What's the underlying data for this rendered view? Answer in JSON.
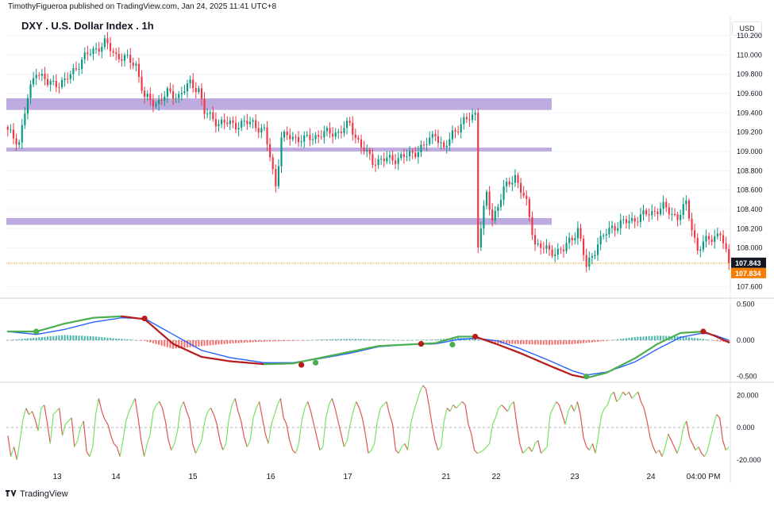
{
  "header": {
    "publisher": "TimothyFigueroa published on TradingView.com, Jan 24, 2025 11:41 UTC+8",
    "symbol_title": "DXY . U.S. Dollar Index . 1h",
    "currency": "USD",
    "footer_brand": "TradingView"
  },
  "colors": {
    "up": "#089981",
    "down": "#f23645",
    "zone": "#b39ddb",
    "price_line": "#f7a21b",
    "label_dark": "#131722",
    "label_orange": "#f57c00",
    "macd_fast_up": "#4caf50",
    "macd_fast_down": "#b71c1c",
    "macd_slow": "#2962ff",
    "osc_up": "#76e35f",
    "osc_down": "#e05555"
  },
  "chart_data": [
    {
      "type": "candlestick",
      "title": "DXY . U.S. Dollar Index . 1h",
      "ylabel": "USD",
      "ylim": [
        107.48,
        110.38
      ],
      "yticks": [
        "110.200",
        "110.000",
        "109.800",
        "109.600",
        "109.400",
        "109.200",
        "109.000",
        "108.800",
        "108.600",
        "108.400",
        "108.200",
        "108.000",
        "107.600"
      ],
      "xticks": [
        "13",
        "14",
        "15",
        "16",
        "17",
        "21",
        "22",
        "23",
        "24",
        "04:00 PM"
      ],
      "zones": [
        {
          "from": 109.43,
          "to": 109.55
        },
        {
          "from": 109.0,
          "to": 109.04
        },
        {
          "from": 108.24,
          "to": 108.31
        }
      ],
      "last_price_labels": [
        "107.843",
        "107.834"
      ],
      "anchors": [
        [
          0,
          109.2
        ],
        [
          4,
          109.1
        ],
        [
          7,
          109.55
        ],
        [
          10,
          109.85
        ],
        [
          14,
          109.7
        ],
        [
          20,
          109.72
        ],
        [
          26,
          109.95
        ],
        [
          30,
          110.05
        ],
        [
          34,
          110.12
        ],
        [
          38,
          110.0
        ],
        [
          42,
          109.95
        ],
        [
          45,
          109.9
        ],
        [
          48,
          109.55
        ],
        [
          52,
          109.5
        ],
        [
          56,
          109.6
        ],
        [
          60,
          109.58
        ],
        [
          64,
          109.7
        ],
        [
          67,
          109.65
        ],
        [
          69,
          109.4
        ],
        [
          74,
          109.3
        ],
        [
          80,
          109.28
        ],
        [
          86,
          109.3
        ],
        [
          90,
          109.2
        ],
        [
          92,
          108.95
        ],
        [
          94,
          108.65
        ],
        [
          96,
          109.15
        ],
        [
          100,
          109.15
        ],
        [
          104,
          109.12
        ],
        [
          110,
          109.18
        ],
        [
          116,
          109.2
        ],
        [
          120,
          109.28
        ],
        [
          124,
          109.05
        ],
        [
          128,
          108.9
        ],
        [
          134,
          108.92
        ],
        [
          140,
          108.95
        ],
        [
          146,
          109.05
        ],
        [
          150,
          109.2
        ],
        [
          153,
          109.0
        ],
        [
          156,
          109.2
        ],
        [
          160,
          109.3
        ],
        [
          164,
          109.4
        ],
        [
          165,
          108.05
        ],
        [
          168,
          108.55
        ],
        [
          170,
          108.3
        ],
        [
          174,
          108.6
        ],
        [
          178,
          108.75
        ],
        [
          182,
          108.45
        ],
        [
          185,
          108.05
        ],
        [
          190,
          107.96
        ],
        [
          195,
          107.98
        ],
        [
          200,
          108.2
        ],
        [
          203,
          107.8
        ],
        [
          207,
          108.05
        ],
        [
          212,
          108.22
        ],
        [
          218,
          108.28
        ],
        [
          224,
          108.35
        ],
        [
          230,
          108.42
        ],
        [
          235,
          108.32
        ],
        [
          238,
          108.45
        ],
        [
          242,
          107.98
        ],
        [
          246,
          108.1
        ],
        [
          250,
          108.15
        ],
        [
          253,
          107.83
        ]
      ]
    },
    {
      "type": "line",
      "name": "macd",
      "ylim": [
        -0.58,
        0.58
      ],
      "yticks": [
        "0.500",
        "0.000",
        "-0.500"
      ],
      "fast_anchors": [
        [
          0,
          0.12
        ],
        [
          10,
          0.12
        ],
        [
          20,
          0.23
        ],
        [
          30,
          0.31
        ],
        [
          40,
          0.33
        ],
        [
          48,
          0.29
        ],
        [
          58,
          -0.05
        ],
        [
          68,
          -0.23
        ],
        [
          78,
          -0.29
        ],
        [
          90,
          -0.33
        ],
        [
          100,
          -0.32
        ],
        [
          110,
          -0.24
        ],
        [
          120,
          -0.16
        ],
        [
          130,
          -0.08
        ],
        [
          140,
          -0.06
        ],
        [
          150,
          -0.04
        ],
        [
          158,
          0.05
        ],
        [
          164,
          0.05
        ],
        [
          172,
          -0.06
        ],
        [
          180,
          -0.18
        ],
        [
          190,
          -0.35
        ],
        [
          198,
          -0.48
        ],
        [
          203,
          -0.52
        ],
        [
          210,
          -0.45
        ],
        [
          220,
          -0.25
        ],
        [
          228,
          -0.05
        ],
        [
          236,
          0.1
        ],
        [
          244,
          0.12
        ],
        [
          248,
          0.06
        ],
        [
          253,
          -0.03
        ]
      ],
      "slow_anchors": [
        [
          0,
          0.12
        ],
        [
          10,
          0.08
        ],
        [
          20,
          0.15
        ],
        [
          30,
          0.25
        ],
        [
          40,
          0.31
        ],
        [
          48,
          0.3
        ],
        [
          58,
          0.08
        ],
        [
          68,
          -0.14
        ],
        [
          78,
          -0.24
        ],
        [
          90,
          -0.31
        ],
        [
          100,
          -0.31
        ],
        [
          110,
          -0.25
        ],
        [
          120,
          -0.18
        ],
        [
          130,
          -0.09
        ],
        [
          140,
          -0.06
        ],
        [
          150,
          -0.05
        ],
        [
          158,
          0.01
        ],
        [
          164,
          0.03
        ],
        [
          172,
          -0.01
        ],
        [
          180,
          -0.12
        ],
        [
          190,
          -0.28
        ],
        [
          198,
          -0.42
        ],
        [
          203,
          -0.48
        ],
        [
          210,
          -0.44
        ],
        [
          220,
          -0.3
        ],
        [
          228,
          -0.12
        ],
        [
          236,
          0.04
        ],
        [
          244,
          0.1
        ],
        [
          248,
          0.07
        ],
        [
          253,
          0.0
        ]
      ],
      "markers": [
        [
          10,
          0.12,
          "up"
        ],
        [
          48,
          0.3,
          "down"
        ],
        [
          103,
          -0.34,
          "down"
        ],
        [
          108,
          -0.31,
          "up"
        ],
        [
          145,
          -0.05,
          "down"
        ],
        [
          156,
          -0.06,
          "up"
        ],
        [
          164,
          0.05,
          "down"
        ],
        [
          203,
          -0.5,
          "up"
        ],
        [
          244,
          0.12,
          "down"
        ]
      ]
    },
    {
      "type": "line",
      "name": "oscillator",
      "ylim": [
        -26,
        28
      ],
      "yticks": [
        "20.000",
        "0.000",
        "-20.000"
      ],
      "values": [
        -5,
        -18,
        -12,
        -20,
        -8,
        5,
        12,
        8,
        10,
        5,
        -2,
        12,
        14,
        3,
        -10,
        8,
        10,
        12,
        -5,
        2,
        4,
        6,
        -12,
        -8,
        0,
        4,
        -15,
        -18,
        -12,
        8,
        18,
        10,
        5,
        2,
        -5,
        -10,
        -12,
        -18,
        -8,
        4,
        10,
        14,
        18,
        6,
        -8,
        -18,
        -10,
        -4,
        10,
        14,
        16,
        12,
        4,
        -8,
        -14,
        -10,
        -2,
        12,
        16,
        10,
        5,
        -10,
        -16,
        -12,
        -8,
        4,
        10,
        12,
        8,
        2,
        -8,
        -14,
        -10,
        6,
        14,
        18,
        10,
        4,
        -6,
        -12,
        -8,
        6,
        12,
        16,
        6,
        -4,
        -10,
        2,
        8,
        14,
        18,
        6,
        2,
        -8,
        -14,
        -16,
        -10,
        4,
        12,
        16,
        10,
        2,
        -6,
        -14,
        -12,
        6,
        14,
        18,
        12,
        4,
        -4,
        -12,
        -8,
        2,
        10,
        16,
        12,
        6,
        -4,
        -16,
        -14,
        -10,
        4,
        12,
        14,
        16,
        8,
        2,
        -14,
        -16,
        -12,
        -10,
        -14,
        2,
        10,
        16,
        22,
        26,
        24,
        14,
        2,
        -8,
        -14,
        -12,
        4,
        12,
        10,
        14,
        12,
        14,
        16,
        14,
        2,
        -4,
        -14,
        -16,
        -15,
        -14,
        -12,
        -10,
        2,
        6,
        12,
        14,
        12,
        10,
        14,
        16,
        2,
        -10,
        -16,
        -14,
        -12,
        -15,
        -10,
        -8,
        -16,
        -14,
        -12,
        8,
        12,
        16,
        14,
        8,
        2,
        10,
        14,
        10,
        16,
        8,
        -6,
        -12,
        -14,
        -10,
        -16,
        -4,
        8,
        12,
        14,
        20,
        22,
        16,
        18,
        22,
        20,
        22,
        18,
        20,
        22,
        16,
        12,
        4,
        -6,
        -12,
        -16,
        -14,
        -18,
        -12,
        -4,
        -8,
        -12,
        -16,
        -10,
        0,
        4,
        -6,
        -10,
        -14,
        -12,
        -16,
        -18,
        -14,
        -6,
        2,
        8,
        6,
        -8,
        -14,
        -12
      ]
    }
  ]
}
